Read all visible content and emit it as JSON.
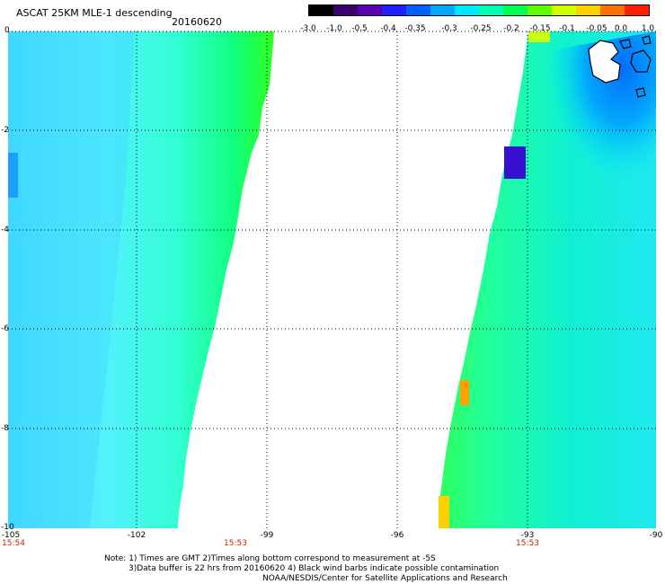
{
  "header": {
    "title": "ASCAT 25KM MLE-1 descending",
    "date": "20160620"
  },
  "colorbar": {
    "labels": [
      "-3.0",
      "-1.0",
      "-0.5",
      "-0.4",
      "-0.35",
      "-0.3",
      "-0.25",
      "-0.2",
      "-0.15",
      "-0.1",
      "-0.05",
      "0.0",
      "1.0"
    ],
    "colors": [
      "#000000",
      "#3a0070",
      "#5a00b0",
      "#2020ff",
      "#0060ff",
      "#00a8ff",
      "#00e8ff",
      "#00ffb0",
      "#00ff50",
      "#60ff00",
      "#d0ff00",
      "#ffd000",
      "#ff7000",
      "#ff2000"
    ]
  },
  "axes": {
    "lat_labels": [
      "0",
      "-2",
      "-4",
      "-6",
      "-8",
      "-10"
    ],
    "lon_labels": [
      "-105",
      "-102",
      "-99",
      "-96",
      "-93",
      "-90"
    ],
    "time_labels": [
      "15:54",
      "15:53",
      "15:53"
    ]
  },
  "legend_colors": {
    "land_outline": "#000000",
    "time_text": "#cc2200"
  },
  "footer": {
    "line1": "Note: 1) Times are GMT 2)Times along bottom correspond to measurement at -5S",
    "line2": "3)Data buffer is 22 hrs from 20160620 4) Black wind barbs indicate possible contamination",
    "line3": "NOAA/NESDIS/Center for Satellite Applications and Research"
  }
}
